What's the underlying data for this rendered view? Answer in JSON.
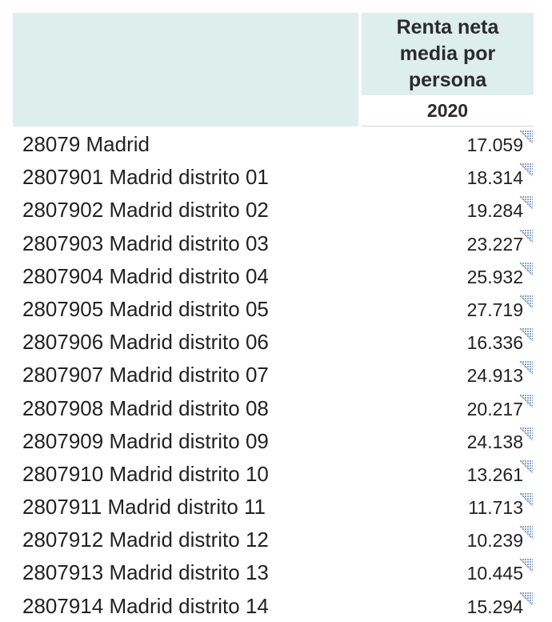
{
  "header": {
    "column_title": "Renta neta media por persona",
    "year": "2020"
  },
  "rows": [
    {
      "label": "28079 Madrid",
      "value": "17.059"
    },
    {
      "label": "2807901 Madrid distrito 01",
      "value": "18.314"
    },
    {
      "label": "2807902 Madrid distrito 02",
      "value": "19.284"
    },
    {
      "label": "2807903 Madrid distrito 03",
      "value": "23.227"
    },
    {
      "label": "2807904 Madrid distrito 04",
      "value": "25.932"
    },
    {
      "label": "2807905 Madrid distrito 05",
      "value": "27.719"
    },
    {
      "label": "2807906 Madrid distrito 06",
      "value": "16.336"
    },
    {
      "label": "2807907 Madrid distrito 07",
      "value": "24.913"
    },
    {
      "label": "2807908 Madrid distrito 08",
      "value": "20.217"
    },
    {
      "label": "2807909 Madrid distrito 09",
      "value": "24.138"
    },
    {
      "label": "2807910 Madrid distrito 10",
      "value": "13.261"
    },
    {
      "label": "2807911 Madrid distrito 11",
      "value": "11.713"
    },
    {
      "label": "2807912 Madrid distrito 12",
      "value": "10.239"
    },
    {
      "label": "2807913 Madrid distrito 13",
      "value": "10.445"
    },
    {
      "label": "2807914 Madrid distrito 14",
      "value": "15.294"
    }
  ],
  "colors": {
    "header_bg": "#deeeed",
    "flag": "#8aa6c8"
  },
  "icons": {
    "note_flag": "note-flag-icon"
  }
}
